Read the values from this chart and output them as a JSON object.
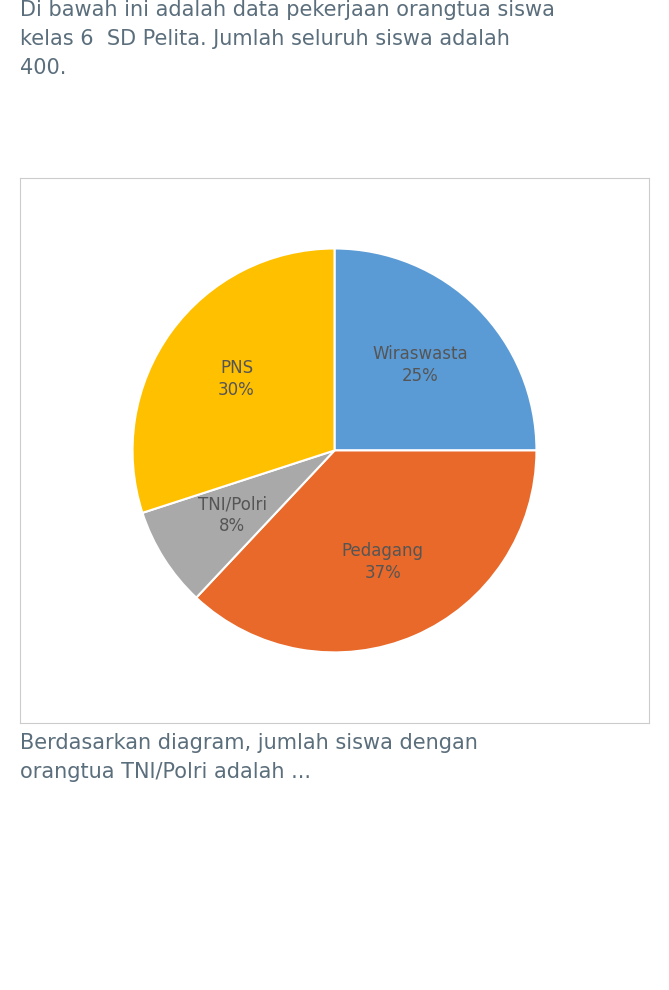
{
  "title_text": "Di bawah ini adalah data pekerjaan orangtua siswa\nkelas 6  SD Pelita. Jumlah seluruh siswa adalah\n400.",
  "footer_text": "Berdasarkan diagram, jumlah siswa dengan\norangtua TNI/Polri adalah ...",
  "labels": [
    "Wiraswasta",
    "Pedagang",
    "TNI/Polri",
    "PNS"
  ],
  "values": [
    25,
    37,
    8,
    30
  ],
  "colors": [
    "#5B9BD5",
    "#E8692A",
    "#A9A9A9",
    "#FFC000"
  ],
  "startangle": 90,
  "title_fontsize": 15,
  "footer_fontsize": 15,
  "label_fontsize": 12,
  "bg_color": "#FFFFFF",
  "text_color": "#5B6E7C",
  "chart_border_color": "#CCCCCC",
  "label_color": "#555555"
}
